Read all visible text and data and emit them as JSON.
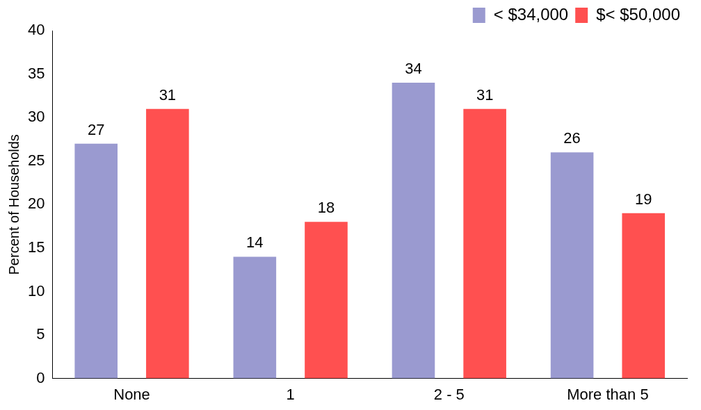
{
  "chart_data": {
    "type": "bar",
    "ylabel": "Percent of Households",
    "categories": [
      "None",
      "1",
      "2 - 5",
      "More than 5"
    ],
    "series": [
      {
        "name": "< $34,000",
        "color": "#9a9ad0",
        "values": [
          27,
          14,
          34,
          26
        ]
      },
      {
        "name": "$< $50,000",
        "color": "#ff5050",
        "values": [
          31,
          18,
          31,
          19
        ]
      }
    ],
    "ylim": [
      0,
      40
    ],
    "yticks": [
      0,
      5,
      10,
      15,
      20,
      25,
      30,
      35,
      40
    ],
    "grid": false,
    "legend": "top right",
    "data_labels": true
  }
}
